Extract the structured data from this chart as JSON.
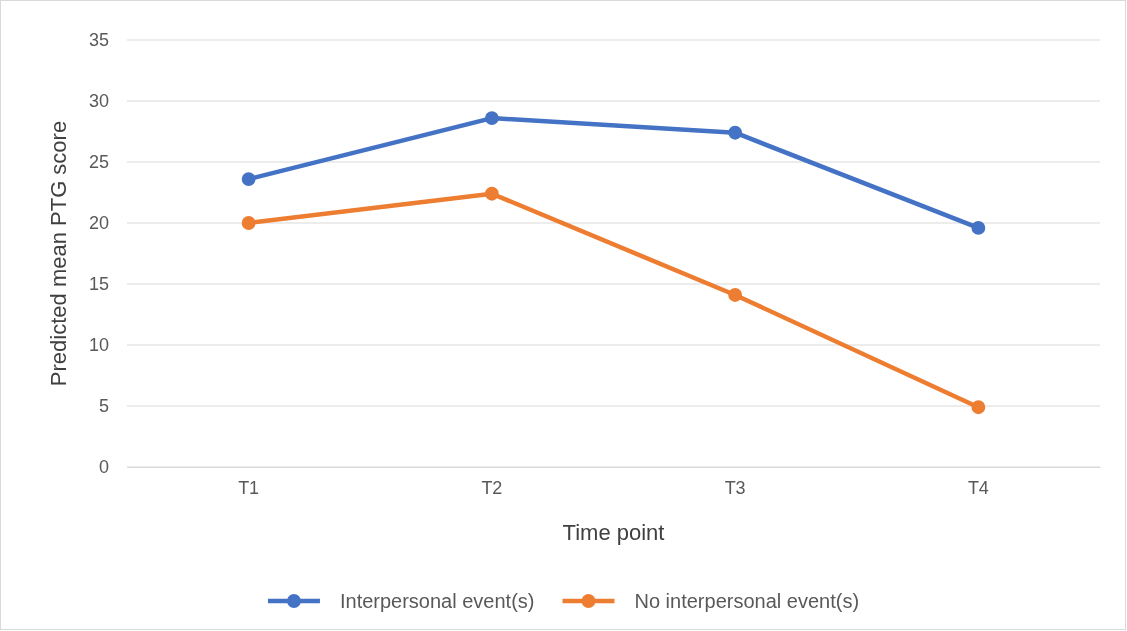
{
  "chart_data": {
    "type": "line",
    "xlabel": "Time point",
    "ylabel": "Predicted mean PTG score",
    "categories": [
      "T1",
      "T2",
      "T3",
      "T4"
    ],
    "series": [
      {
        "name": "Interpersonal event(s)",
        "color": "#4472c4",
        "values": [
          23.6,
          28.6,
          27.4,
          19.6
        ]
      },
      {
        "name": "No interpersonal event(s)",
        "color": "#ed7d31",
        "values": [
          20.0,
          22.4,
          14.1,
          4.9
        ]
      }
    ],
    "ylim": [
      0,
      35
    ],
    "yticks": [
      0,
      5,
      10,
      15,
      20,
      25,
      30,
      35
    ],
    "grid": "y",
    "legend": "bottom",
    "marker": "circle"
  }
}
